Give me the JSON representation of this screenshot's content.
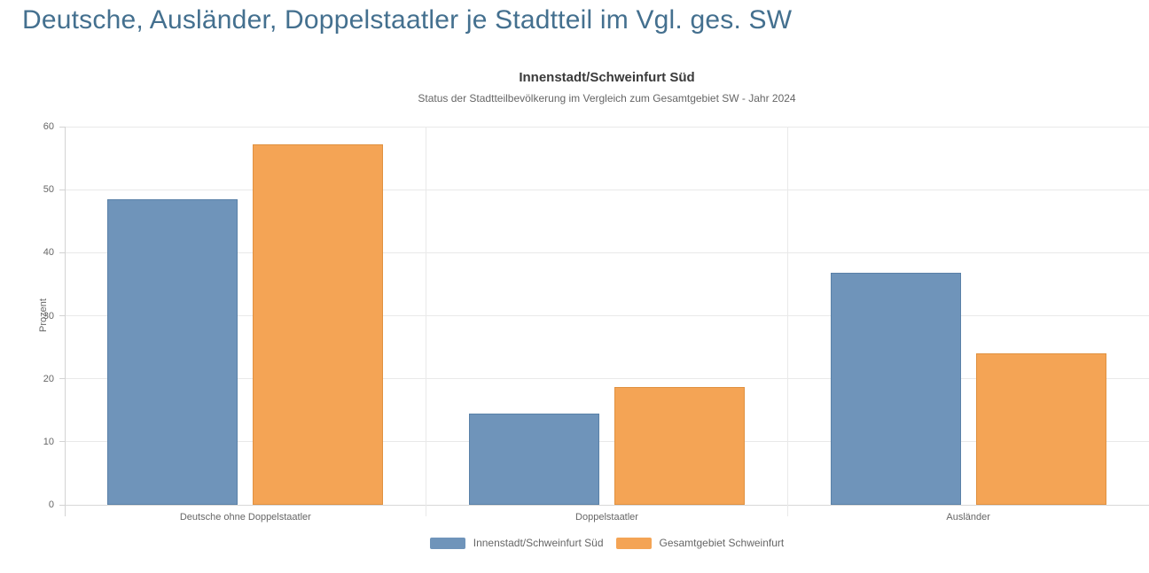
{
  "page_title": "Deutsche, Ausländer, Doppelstaatler je Stadtteil im Vgl. ges. SW",
  "chart_data": {
    "type": "bar",
    "title": "Innenstadt/Schweinfurt Süd",
    "subtitle": "Status der Stadtteilbevölkerung im Vergleich zum Gesamtgebiet SW - Jahr 2024",
    "categories": [
      "Deutsche ohne Doppelstaatler",
      "Doppelstaatler",
      "Ausländer"
    ],
    "series": [
      {
        "name": "Innenstadt/Schweinfurt Süd",
        "color": "#6f94ba",
        "border_color": "#5a81a8",
        "values": [
          48.5,
          14.5,
          36.8
        ]
      },
      {
        "name": "Gesamtgebiet Schweinfurt",
        "color": "#f4a455",
        "border_color": "#e09140",
        "values": [
          57.2,
          18.7,
          24.0
        ]
      }
    ],
    "xlabel": "",
    "ylabel": "Prozent",
    "ylim": [
      0,
      60
    ],
    "ytick_step": 10,
    "yticks": [
      0,
      10,
      20,
      30,
      40,
      50,
      60
    ],
    "grid": true,
    "legend_position": "bottom",
    "colors": {
      "page_title": "#44708f",
      "chart_title": "#3a3a3a",
      "subtitle": "#666666",
      "axis_text": "#666666",
      "gridline": "#e9e9e9"
    }
  }
}
